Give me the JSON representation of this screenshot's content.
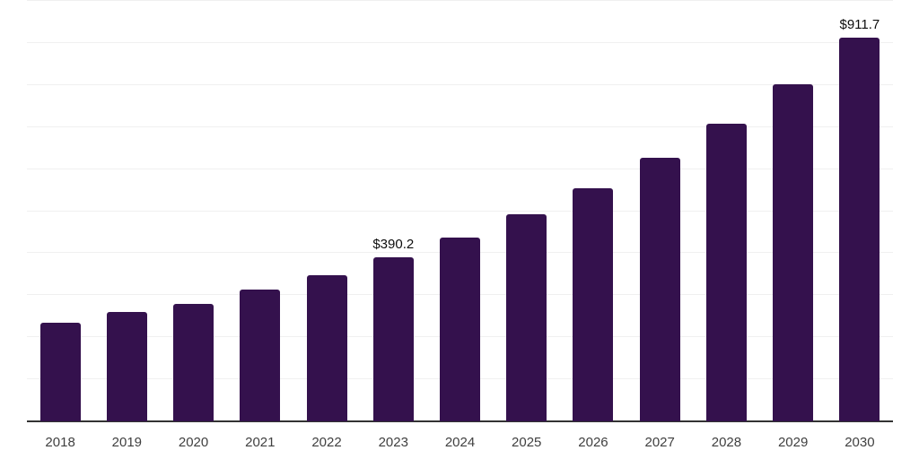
{
  "page": {
    "background": "#ffffff"
  },
  "chart_data": {
    "type": "bar",
    "title": "",
    "xlabel": "",
    "ylabel": "",
    "categories": [
      "2018",
      "2019",
      "2020",
      "2021",
      "2022",
      "2023",
      "2024",
      "2025",
      "2026",
      "2027",
      "2028",
      "2029",
      "2030"
    ],
    "values": [
      234.5,
      259.5,
      279.3,
      312.8,
      348.2,
      390.2,
      437.1,
      491.9,
      554.4,
      626.9,
      707.3,
      801.7,
      911.7
    ],
    "value_labels": [
      {
        "index": 5,
        "text": "$390.2"
      },
      {
        "index": 12,
        "text": "$911.7"
      }
    ],
    "ylim": [
      0,
      1000
    ],
    "gridline_interval": 100,
    "grid": "horizontal-only",
    "legend": "none",
    "bar_color": "#34114D",
    "axis_line_color": "#333333",
    "gridline_color": "#f0f0f0",
    "tick_label_color": "#404040",
    "value_label_color": "#0d0d0d"
  }
}
